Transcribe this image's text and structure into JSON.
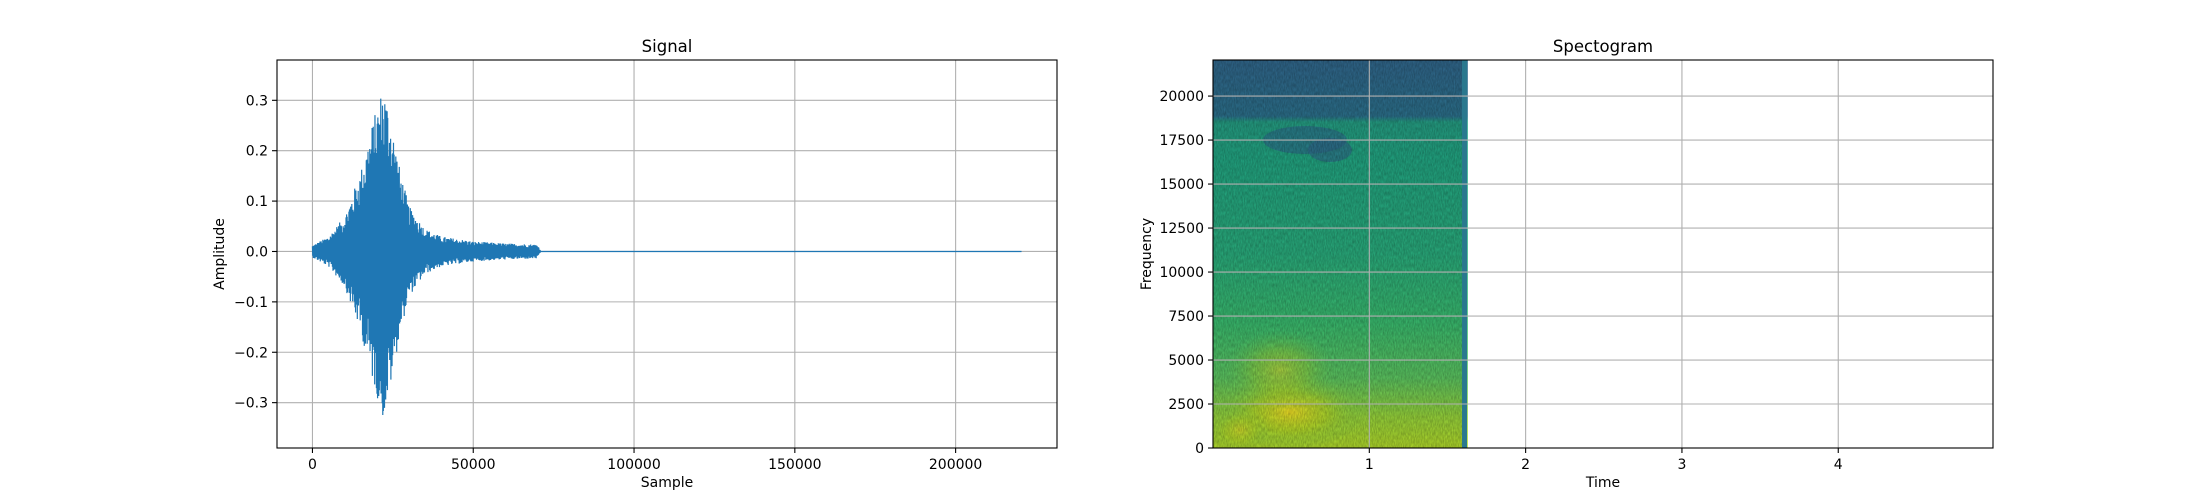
{
  "chart_data": [
    {
      "type": "line",
      "title": "Signal",
      "xlabel": "Sample",
      "ylabel": "Amplitude",
      "xlim": [
        -11025,
        231525
      ],
      "ylim": [
        -0.39,
        0.38
      ],
      "xticks": [
        0,
        50000,
        100000,
        150000,
        200000
      ],
      "xtick_labels": [
        "0",
        "50000",
        "100000",
        "150000",
        "200000"
      ],
      "yticks": [
        -0.3,
        -0.2,
        -0.1,
        0.0,
        0.1,
        0.2,
        0.3
      ],
      "ytick_labels": [
        "−0.3",
        "−0.2",
        "−0.1",
        "0.0",
        "0.1",
        "0.2",
        "0.3"
      ],
      "grid": true,
      "color": "#1f77b4",
      "series": [
        {
          "x": [
            0,
            5000,
            10000,
            15000,
            18000,
            21000,
            22000,
            24000,
            27000,
            30000,
            35000,
            40000,
            50000,
            60000,
            70000,
            71000,
            100000,
            150000,
            200000,
            220500
          ],
          "envelope": [
            0.012,
            0.03,
            0.07,
            0.16,
            0.24,
            0.31,
            0.335,
            0.28,
            0.17,
            0.09,
            0.045,
            0.03,
            0.02,
            0.016,
            0.014,
            0.0,
            0.0,
            0.0,
            0.0,
            0.0
          ]
        }
      ]
    },
    {
      "type": "heatmap",
      "title": "Spectogram",
      "xlabel": "Time",
      "ylabel": "Frequency",
      "xlim": [
        0,
        4.99
      ],
      "ylim": [
        0,
        22050
      ],
      "xticks": [
        1,
        2,
        3,
        4
      ],
      "xtick_labels": [
        "1",
        "2",
        "3",
        "4"
      ],
      "yticks": [
        0,
        2500,
        5000,
        7500,
        10000,
        12500,
        15000,
        17500,
        20000
      ],
      "ytick_labels": [
        "0",
        "2500",
        "5000",
        "7500",
        "10000",
        "12500",
        "15000",
        "17500",
        "20000"
      ],
      "grid": true,
      "data_extent_time": [
        0,
        1.63
      ],
      "colormap": "viridis"
    }
  ]
}
